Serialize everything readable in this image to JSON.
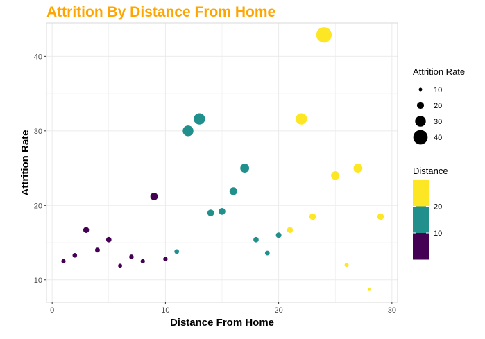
{
  "colors": {
    "title": "#FFA500",
    "grid": "#EBEBEB",
    "panel_border": "#D9D9D9",
    "low": "#440154",
    "mid": "#21908C",
    "high": "#FDE725"
  },
  "chart_data": {
    "type": "scatter",
    "title": "Attrition By Distance From Home",
    "xlabel": "Distance From Home",
    "ylabel": "Attrition Rate",
    "xlim": [
      -0.5,
      30.5
    ],
    "ylim": [
      7,
      44.5
    ],
    "x_ticks": [
      0,
      10,
      20,
      30
    ],
    "y_ticks": [
      10,
      20,
      30,
      40
    ],
    "grid": true,
    "size_legend": {
      "title": "Attrition Rate",
      "values": [
        10,
        20,
        30,
        40
      ]
    },
    "color_legend": {
      "title": "Distance",
      "labels": [
        20,
        10
      ],
      "bands": [
        "#FDE725",
        "#21908C",
        "#440154"
      ]
    },
    "points": [
      {
        "x": 1,
        "y": 12.5,
        "color": "#440154"
      },
      {
        "x": 2,
        "y": 13.3,
        "color": "#440154"
      },
      {
        "x": 3,
        "y": 16.7,
        "color": "#440154"
      },
      {
        "x": 4,
        "y": 14.0,
        "color": "#440154"
      },
      {
        "x": 5,
        "y": 15.4,
        "color": "#440154"
      },
      {
        "x": 6,
        "y": 11.9,
        "color": "#440154"
      },
      {
        "x": 7,
        "y": 13.1,
        "color": "#440154"
      },
      {
        "x": 8,
        "y": 12.5,
        "color": "#440154"
      },
      {
        "x": 9,
        "y": 21.2,
        "color": "#440154"
      },
      {
        "x": 10,
        "y": 12.8,
        "color": "#440154"
      },
      {
        "x": 11,
        "y": 13.8,
        "color": "#21908C"
      },
      {
        "x": 12,
        "y": 30.0,
        "color": "#21908C"
      },
      {
        "x": 13,
        "y": 31.6,
        "color": "#21908C"
      },
      {
        "x": 14,
        "y": 19.0,
        "color": "#21908C"
      },
      {
        "x": 15,
        "y": 19.2,
        "color": "#21908C"
      },
      {
        "x": 16,
        "y": 21.9,
        "color": "#21908C"
      },
      {
        "x": 17,
        "y": 25.0,
        "color": "#21908C"
      },
      {
        "x": 18,
        "y": 15.4,
        "color": "#21908C"
      },
      {
        "x": 19,
        "y": 13.6,
        "color": "#21908C"
      },
      {
        "x": 20,
        "y": 16.0,
        "color": "#21908C"
      },
      {
        "x": 21,
        "y": 16.7,
        "color": "#FDE725"
      },
      {
        "x": 22,
        "y": 31.6,
        "color": "#FDE725"
      },
      {
        "x": 23,
        "y": 18.5,
        "color": "#FDE725"
      },
      {
        "x": 24,
        "y": 42.9,
        "color": "#FDE725"
      },
      {
        "x": 25,
        "y": 24.0,
        "color": "#FDE725"
      },
      {
        "x": 26,
        "y": 12.0,
        "color": "#FDE725"
      },
      {
        "x": 27,
        "y": 25.0,
        "color": "#FDE725"
      },
      {
        "x": 28,
        "y": 8.7,
        "color": "#FDE725"
      },
      {
        "x": 29,
        "y": 18.5,
        "color": "#FDE725"
      }
    ]
  }
}
